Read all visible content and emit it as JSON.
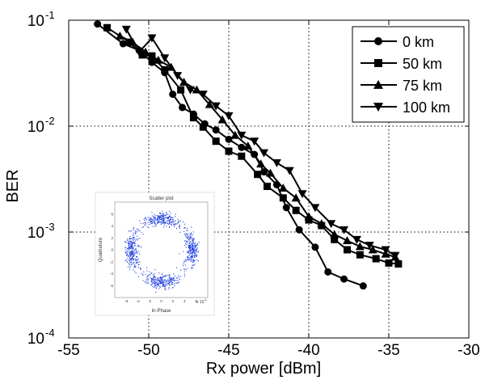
{
  "chart_data": {
    "type": "line",
    "xlabel": "Rx power [dBm]",
    "ylabel": "BER",
    "xlim": [
      -55,
      -30
    ],
    "ylim": [
      0.0001,
      0.1
    ],
    "yscale": "log",
    "grid": true,
    "legend_position": "top-right",
    "x_ticks": [
      "-55",
      "-50",
      "-45",
      "-40",
      "-35",
      "-30"
    ],
    "y_ticks": [
      {
        "base": "10",
        "exp": "-4"
      },
      {
        "base": "10",
        "exp": "-3"
      },
      {
        "base": "10",
        "exp": "-2"
      },
      {
        "base": "10",
        "exp": "-1"
      }
    ],
    "series": [
      {
        "name": "0 km",
        "marker": "circle",
        "x": [
          -53.2,
          -51.6,
          -50.6,
          -49.8,
          -49.0,
          -48.5,
          -47.9,
          -47.2,
          -46.5,
          -45.8,
          -45.0,
          -44.2,
          -43.4,
          -42.8,
          -42.0,
          -41.4,
          -40.6,
          -39.6,
          -38.8,
          -37.8,
          -36.6
        ],
        "y": [
          0.092,
          0.06,
          0.052,
          0.04,
          0.032,
          0.02,
          0.015,
          0.013,
          0.0105,
          0.0092,
          0.0075,
          0.0063,
          0.0054,
          0.0037,
          0.0028,
          0.0017,
          0.00105,
          0.00072,
          0.00042,
          0.00036,
          0.00031
        ]
      },
      {
        "name": "50 km",
        "marker": "square",
        "x": [
          -52.6,
          -51.2,
          -50.4,
          -49.8,
          -49.0,
          -48.0,
          -47.2,
          -46.6,
          -45.8,
          -45.0,
          -44.2,
          -43.2,
          -42.6,
          -41.6,
          -40.8,
          -40.0,
          -39.2,
          -38.4,
          -37.6,
          -36.8,
          -35.8,
          -35.0,
          -34.4
        ],
        "y": [
          0.085,
          0.062,
          0.047,
          0.046,
          0.034,
          0.022,
          0.012,
          0.0098,
          0.0072,
          0.0058,
          0.0052,
          0.0035,
          0.0027,
          0.0021,
          0.0016,
          0.0013,
          0.00115,
          0.00085,
          0.00068,
          0.00061,
          0.00056,
          0.00051,
          0.0005
        ]
      },
      {
        "name": "75 km",
        "marker": "triangle-up",
        "x": [
          -51.8,
          -51.0,
          -50.2,
          -49.4,
          -48.6,
          -47.8,
          -47.0,
          -46.2,
          -45.4,
          -44.6,
          -43.8,
          -43.0,
          -42.4,
          -41.6,
          -40.8,
          -40.0,
          -39.2,
          -38.4,
          -37.6,
          -36.8,
          -36.0,
          -35.2,
          -34.6
        ],
        "y": [
          0.071,
          0.062,
          0.05,
          0.042,
          0.036,
          0.026,
          0.022,
          0.016,
          0.0115,
          0.0082,
          0.0065,
          0.0044,
          0.0036,
          0.0026,
          0.0021,
          0.0014,
          0.0012,
          0.00095,
          0.00083,
          0.00073,
          0.00068,
          0.00062,
          0.00058
        ]
      },
      {
        "name": "100 km",
        "marker": "triangle-down",
        "x": [
          -51.4,
          -50.6,
          -49.8,
          -49.0,
          -48.2,
          -47.4,
          -46.6,
          -45.8,
          -45.0,
          -44.2,
          -43.4,
          -42.8,
          -42.0,
          -41.2,
          -40.4,
          -39.6,
          -38.6,
          -37.8,
          -37.0,
          -36.2,
          -35.2,
          -34.6
        ],
        "y": [
          0.082,
          0.05,
          0.068,
          0.044,
          0.03,
          0.022,
          0.02,
          0.0155,
          0.0125,
          0.0082,
          0.0072,
          0.0056,
          0.0045,
          0.0038,
          0.0023,
          0.0017,
          0.0012,
          0.00105,
          0.00085,
          0.00075,
          0.00068,
          0.0006
        ]
      }
    ],
    "inset": {
      "type": "scatter",
      "title": "Scatter plot",
      "xlabel": "In-Phase",
      "ylabel": "Quadrature",
      "xlim": [
        -8,
        8
      ],
      "ylim": [
        -8,
        8
      ],
      "x_ticks": [
        "-6",
        "-4",
        "-2",
        "0",
        "2",
        "4",
        "6"
      ],
      "y_ticks": [
        "-6",
        "-4",
        "-2",
        "0",
        "2",
        "4",
        "6"
      ],
      "scale_note": "x 10",
      "scale_exp": "-4",
      "point_color": "#1f3fe0",
      "clusters": [
        {
          "center": [
            0,
            5.3
          ],
          "radius": 5.3
        },
        {
          "center": [
            0,
            -5.3
          ],
          "radius": 5.3
        },
        {
          "center": [
            5.3,
            0
          ],
          "radius": 5.3
        },
        {
          "center": [
            -5.3,
            0
          ],
          "radius": 5.3
        }
      ]
    }
  }
}
